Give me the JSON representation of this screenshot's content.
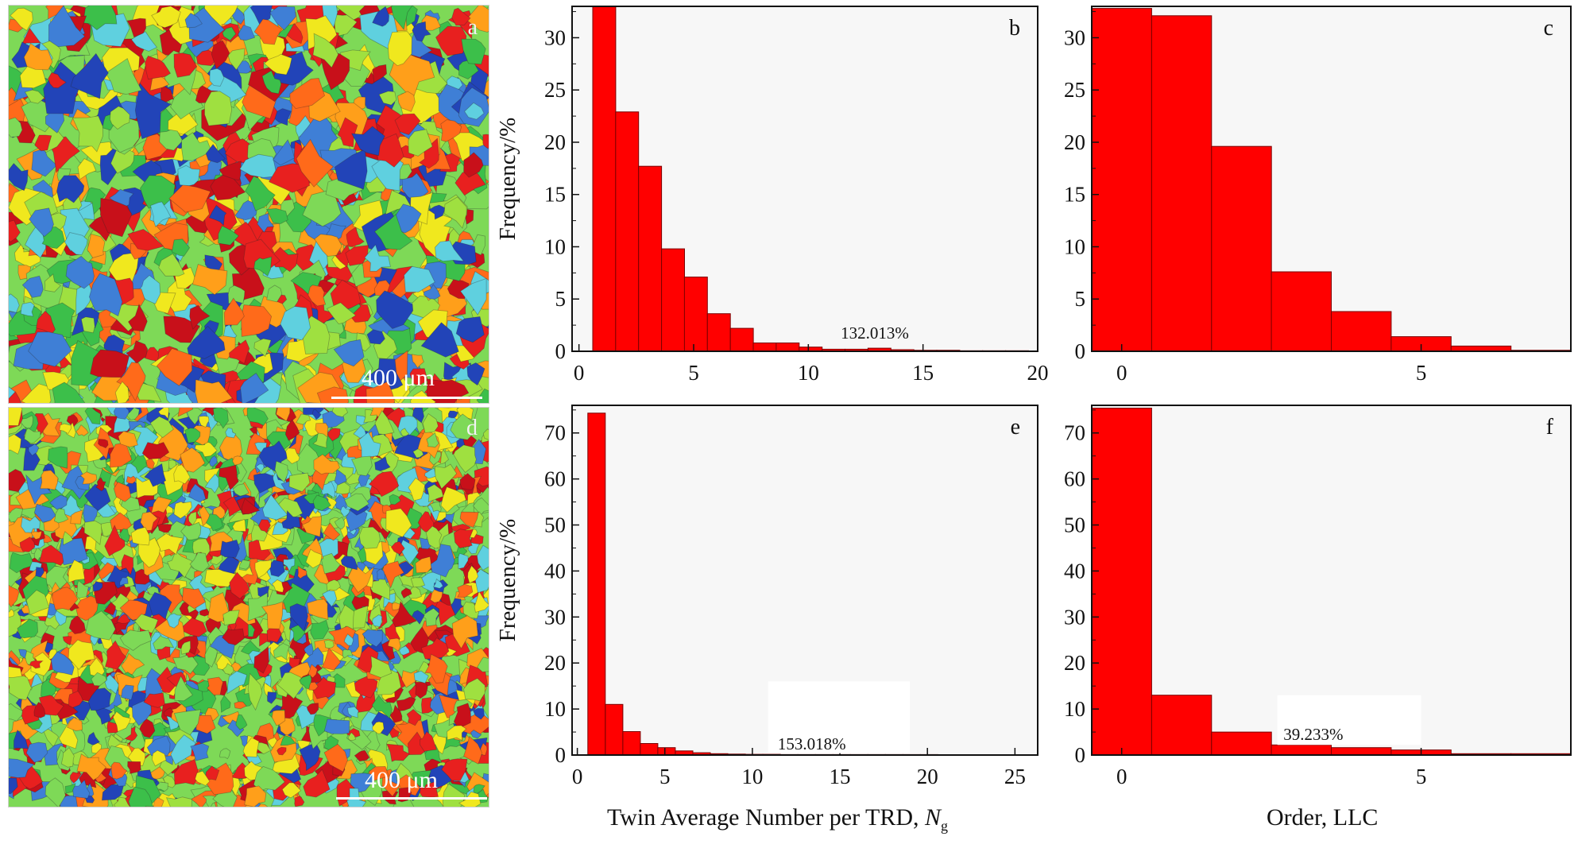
{
  "figure": {
    "panels": {
      "a": {
        "letter": "a",
        "scale_bar": "400 μm"
      },
      "d": {
        "letter": "d",
        "scale_bar": "400 μm"
      }
    },
    "x_titles": {
      "left": {
        "text": "Twin Average Number per TRD, ",
        "symbol": "N",
        "subscript": "g"
      },
      "right": {
        "text": "Order, LLC"
      }
    },
    "colors": {
      "bar_fill": "#ff0000",
      "bar_edge": "#7a0000",
      "plot_background": "#f7f7f7",
      "grain_palette": [
        "#e8201f",
        "#c8101a",
        "#2244b8",
        "#3f7fd6",
        "#5fd0df",
        "#3cbf4a",
        "#7ed957",
        "#9fe040",
        "#f0e81e",
        "#ff9f1a",
        "#ff6a1a"
      ]
    }
  },
  "chart_data": [
    {
      "panel": "b",
      "type": "bar",
      "ylabel": "Frequency/%",
      "xlim": [
        -0.3,
        20
      ],
      "ylim": [
        0,
        33
      ],
      "xticks": [
        0,
        5,
        10,
        15,
        20
      ],
      "yticks": [
        0,
        5,
        10,
        15,
        20,
        25,
        30
      ],
      "bin_edges": [
        0.6,
        1.6,
        2.6,
        3.6,
        4.6,
        5.6,
        6.6,
        7.6,
        8.6,
        9.6,
        10.6,
        11.6,
        12.6,
        13.6,
        14.6,
        15.6,
        16.6,
        17.6,
        18.6,
        19.6
      ],
      "values": [
        33.0,
        22.9,
        17.7,
        9.8,
        7.1,
        3.6,
        2.2,
        0.8,
        0.8,
        0.4,
        0.2,
        0.2,
        0.3,
        0.15,
        0.1,
        0.1,
        0.05,
        0.05,
        0.05
      ],
      "annotation": "132.013%"
    },
    {
      "panel": "c",
      "type": "bar",
      "xlim": [
        -0.5,
        7.5
      ],
      "ylim": [
        0,
        33
      ],
      "xticks": [
        0,
        5
      ],
      "yticks": [
        0,
        5,
        10,
        15,
        20,
        25,
        30
      ],
      "bin_edges": [
        -0.5,
        0.5,
        1.5,
        2.5,
        3.5,
        4.5,
        5.5,
        6.5,
        7.5
      ],
      "values": [
        32.8,
        32.1,
        19.6,
        7.6,
        3.8,
        1.4,
        0.5,
        0.1
      ]
    },
    {
      "panel": "e",
      "type": "bar",
      "ylabel": "Frequency/%",
      "xlim": [
        -0.3,
        26.3
      ],
      "ylim": [
        0,
        76
      ],
      "xticks": [
        0,
        5,
        10,
        15,
        20,
        25
      ],
      "yticks": [
        0,
        10,
        20,
        30,
        40,
        50,
        60,
        70
      ],
      "bin_edges": [
        0.6,
        1.6,
        2.6,
        3.6,
        4.6,
        5.6,
        6.6,
        7.6,
        8.6,
        9.6,
        10.6,
        11.6,
        12.6,
        13.6,
        14.6,
        15.6,
        16.6,
        17.6,
        18.6,
        19.6,
        20.6,
        21.6,
        22.6,
        23.6,
        24.6,
        25.6,
        26.3
      ],
      "values": [
        74.3,
        11.0,
        5.1,
        2.5,
        1.6,
        0.9,
        0.5,
        0.3,
        0.2,
        0.15,
        0.15,
        0.1,
        0.1,
        0.1,
        0.1,
        0.1,
        0.1,
        0.1,
        0.1,
        0.1,
        0.05,
        0.05,
        0.05,
        0.05,
        0.05,
        0.05
      ],
      "annotation": "153.018%"
    },
    {
      "panel": "f",
      "type": "bar",
      "xlim": [
        -0.5,
        7.5
      ],
      "ylim": [
        0,
        76
      ],
      "xticks": [
        0,
        5
      ],
      "yticks": [
        0,
        10,
        20,
        30,
        40,
        50,
        60,
        70
      ],
      "bin_edges": [
        -0.5,
        0.5,
        1.5,
        2.5,
        3.5,
        4.5,
        5.5,
        6.5,
        7.5
      ],
      "values": [
        75.4,
        13.0,
        5.0,
        2.2,
        1.6,
        1.1,
        0.3,
        0.3
      ],
      "annotation": "39.233%"
    }
  ]
}
